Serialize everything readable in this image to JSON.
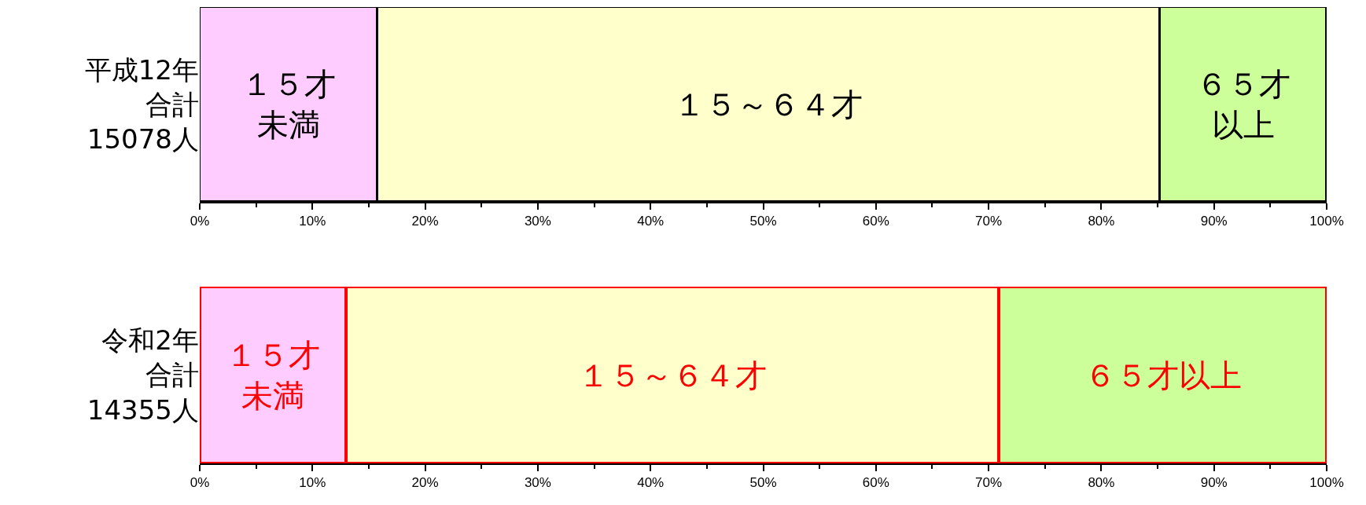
{
  "chart_data": [
    {
      "type": "bar",
      "orientation": "horizontal",
      "stacked": true,
      "categories": [
        "平成12年合計15078人"
      ],
      "series": [
        {
          "name": "１５才未満",
          "color": "#ffccff",
          "values": [
            15.8
          ]
        },
        {
          "name": "１５～６４才",
          "color": "#ffffcc",
          "values": [
            69.4
          ]
        },
        {
          "name": "６５才以上",
          "color": "#ccff99",
          "values": [
            14.8
          ]
        }
      ],
      "xlim": [
        0,
        100
      ],
      "xticks": [
        {
          "value": 0,
          "label": "0%"
        },
        {
          "value": 10,
          "label": "10%"
        },
        {
          "value": 20,
          "label": "20%"
        },
        {
          "value": 30,
          "label": "30%"
        },
        {
          "value": 40,
          "label": "40%"
        },
        {
          "value": 50,
          "label": "50%"
        },
        {
          "value": 60,
          "label": "60%"
        },
        {
          "value": 70,
          "label": "70%"
        },
        {
          "value": 80,
          "label": "80%"
        },
        {
          "value": 90,
          "label": "90%"
        },
        {
          "value": 100,
          "label": "100%"
        }
      ],
      "legend": false
    },
    {
      "type": "bar",
      "orientation": "horizontal",
      "stacked": true,
      "categories": [
        "令和2年合計14355人"
      ],
      "series": [
        {
          "name": "１５才未満",
          "color": "#ffccff",
          "values": [
            13.0
          ]
        },
        {
          "name": "１５～６４才",
          "color": "#ffffcc",
          "values": [
            57.9
          ]
        },
        {
          "name": "６５才以上",
          "color": "#ccff99",
          "values": [
            29.1
          ]
        }
      ],
      "xlim": [
        0,
        100
      ],
      "xticks": [
        {
          "value": 0,
          "label": "0%"
        },
        {
          "value": 10,
          "label": "10%"
        },
        {
          "value": 20,
          "label": "20%"
        },
        {
          "value": 30,
          "label": "30%"
        },
        {
          "value": 40,
          "label": "40%"
        },
        {
          "value": 50,
          "label": "50%"
        },
        {
          "value": 60,
          "label": "60%"
        },
        {
          "value": 70,
          "label": "70%"
        },
        {
          "value": 80,
          "label": "80%"
        },
        {
          "value": 90,
          "label": "90%"
        },
        {
          "value": 100,
          "label": "100%"
        }
      ],
      "legend": false
    }
  ]
}
